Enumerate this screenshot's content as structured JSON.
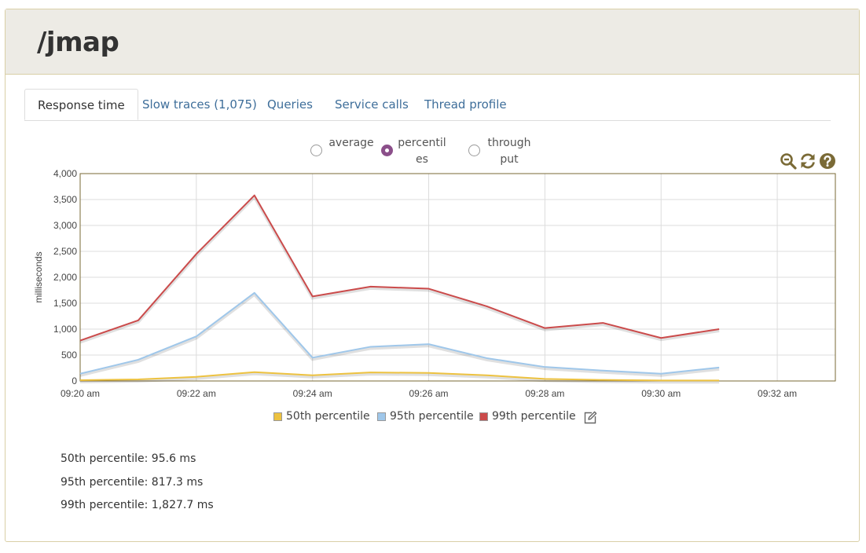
{
  "header": {
    "title": "/jmap"
  },
  "tabs": [
    {
      "label": "Response time",
      "active": true
    },
    {
      "label": "Slow traces (1,075)",
      "active": false
    },
    {
      "label": "Queries",
      "active": false
    },
    {
      "label": "Service calls",
      "active": false
    },
    {
      "label": "Thread profile",
      "active": false
    }
  ],
  "view_options": [
    {
      "label": "average",
      "selected": false
    },
    {
      "label": "percentiles",
      "selected": true
    },
    {
      "label": "throughput",
      "selected": false
    }
  ],
  "toolbar": {
    "icons": [
      "zoom-out-icon",
      "refresh-icon",
      "help-icon"
    ],
    "icon_color": "#7a6a36"
  },
  "chart_data": {
    "type": "line",
    "ylabel": "milliseconds",
    "ylim": [
      0,
      4000
    ],
    "yticks": [
      0,
      500,
      1000,
      1500,
      2000,
      2500,
      3000,
      3500,
      4000
    ],
    "ytick_labels": [
      "0",
      "500",
      "1,000",
      "1,500",
      "2,000",
      "2,500",
      "3,000",
      "3,500",
      "4,000"
    ],
    "xlim": [
      "09:20",
      "09:33"
    ],
    "xtick_labels": [
      "09:20 am",
      "09:22 am",
      "09:24 am",
      "09:26 am",
      "09:28 am",
      "09:30 am",
      "09:32 am"
    ],
    "x": [
      "09:20",
      "09:21",
      "09:22",
      "09:23",
      "09:24",
      "09:25",
      "09:26",
      "09:27",
      "09:28",
      "09:29",
      "09:30",
      "09:31"
    ],
    "grid": true,
    "legend_position": "bottom-center",
    "series": [
      {
        "name": "50th percentile",
        "color": "#edc240",
        "values": [
          15,
          30,
          80,
          170,
          110,
          165,
          155,
          110,
          40,
          20,
          10,
          10
        ]
      },
      {
        "name": "95th percentile",
        "color": "#9fc7ea",
        "values": [
          140,
          410,
          860,
          1700,
          450,
          660,
          710,
          440,
          270,
          200,
          140,
          260
        ]
      },
      {
        "name": "99th percentile",
        "color": "#cb4b4b",
        "values": [
          780,
          1170,
          2450,
          3580,
          1630,
          1820,
          1780,
          1440,
          1020,
          1120,
          830,
          1000
        ]
      }
    ]
  },
  "summary": [
    {
      "label": "50th percentile: 95.6 ms"
    },
    {
      "label": "95th percentile: 817.3 ms"
    },
    {
      "label": "99th percentile: 1,827.7 ms"
    }
  ]
}
